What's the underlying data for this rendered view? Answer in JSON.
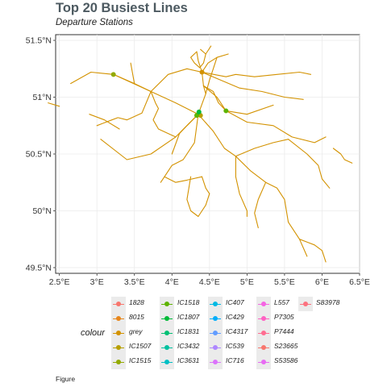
{
  "chart_data": {
    "type": "map",
    "title": "Top 20 Busiest Lines",
    "subtitle": "Departure Stations",
    "caption": "Figure",
    "x_ticks": [
      "2.5°E",
      "3°E",
      "3.5°E",
      "4°E",
      "4.5°E",
      "5°E",
      "5.5°E",
      "6°E",
      "6.5°E"
    ],
    "y_ticks": [
      "49.5°N",
      "50°N",
      "50.5°N",
      "51°N",
      "51.5°N"
    ],
    "xlim": [
      2.45,
      6.5
    ],
    "ylim": [
      49.45,
      51.55
    ],
    "grid": true,
    "legend_title": "colour",
    "legend_placement": "bottom",
    "legend": [
      {
        "label": "1828",
        "color": "#f8766d"
      },
      {
        "label": "8015",
        "color": "#e7861b"
      },
      {
        "label": "grey",
        "color": "#d39200"
      },
      {
        "label": "IC1507",
        "color": "#b79f00"
      },
      {
        "label": "IC1515",
        "color": "#93aa00"
      },
      {
        "label": "IC1518",
        "color": "#5eb300"
      },
      {
        "label": "IC1807",
        "color": "#00ba38"
      },
      {
        "label": "IC1831",
        "color": "#00bf74"
      },
      {
        "label": "IC3432",
        "color": "#00c19f"
      },
      {
        "label": "IC3631",
        "color": "#00bfc4"
      },
      {
        "label": "IC407",
        "color": "#00b9e3"
      },
      {
        "label": "IC429",
        "color": "#00adfa"
      },
      {
        "label": "IC4317",
        "color": "#619cff"
      },
      {
        "label": "IC539",
        "color": "#ae87ff"
      },
      {
        "label": "IC716",
        "color": "#db72fb"
      },
      {
        "label": "L557",
        "color": "#f564e3"
      },
      {
        "label": "P7305",
        "color": "#ff61c3"
      },
      {
        "label": "P7444",
        "color": "#ff6c91"
      },
      {
        "label": "S23665",
        "color": "#f8766d"
      },
      {
        "label": "S53586",
        "color": "#e76bf3"
      },
      {
        "label": "S83978",
        "color": "#fc717f"
      }
    ],
    "route_color": "#d39200",
    "stations": [
      {
        "lon": 3.22,
        "lat": 51.2,
        "color": "#93aa00"
      },
      {
        "lon": 4.72,
        "lat": 50.88,
        "color": "#5eb300"
      },
      {
        "lon": 4.35,
        "lat": 50.85,
        "color": "#93aa00"
      },
      {
        "lon": 4.38,
        "lat": 50.84,
        "color": "#b79f00"
      },
      {
        "lon": 4.33,
        "lat": 50.84,
        "color": "#5eb300"
      },
      {
        "lon": 4.36,
        "lat": 50.87,
        "color": "#00ba38"
      },
      {
        "lon": 4.4,
        "lat": 51.22,
        "color": "#d39200"
      }
    ],
    "lines": [
      [
        [
          2.65,
          51.12
        ],
        [
          2.92,
          51.22
        ],
        [
          3.22,
          51.2
        ],
        [
          3.72,
          51.05
        ],
        [
          4.05,
          50.95
        ],
        [
          4.35,
          50.85
        ]
      ],
      [
        [
          3.22,
          51.2
        ],
        [
          3.5,
          51.12
        ],
        [
          3.72,
          51.05
        ]
      ],
      [
        [
          3.72,
          51.05
        ],
        [
          3.6,
          50.86
        ],
        [
          3.4,
          50.8
        ],
        [
          3.28,
          50.82
        ],
        [
          3.2,
          50.8
        ],
        [
          3.0,
          50.75
        ]
      ],
      [
        [
          3.72,
          51.05
        ],
        [
          3.95,
          51.2
        ],
        [
          4.2,
          51.25
        ],
        [
          4.4,
          51.22
        ]
      ],
      [
        [
          4.35,
          50.85
        ],
        [
          4.45,
          51.03
        ],
        [
          4.42,
          51.1
        ],
        [
          4.4,
          51.22
        ]
      ],
      [
        [
          4.4,
          51.22
        ],
        [
          4.35,
          51.32
        ],
        [
          4.33,
          51.4
        ]
      ],
      [
        [
          4.4,
          51.22
        ],
        [
          4.48,
          51.3
        ],
        [
          4.6,
          51.35
        ],
        [
          4.75,
          51.38
        ]
      ],
      [
        [
          4.4,
          51.22
        ],
        [
          4.65,
          51.15
        ],
        [
          4.9,
          51.08
        ],
        [
          5.2,
          51.05
        ],
        [
          5.5,
          51.0
        ],
        [
          5.75,
          50.98
        ]
      ],
      [
        [
          4.4,
          51.22
        ],
        [
          4.72,
          51.18
        ],
        [
          4.85,
          51.2
        ],
        [
          5.1,
          51.18
        ],
        [
          5.4,
          51.2
        ],
        [
          5.7,
          51.22
        ],
        [
          5.85,
          51.2
        ]
      ],
      [
        [
          4.42,
          51.1
        ],
        [
          4.6,
          51.0
        ],
        [
          4.72,
          50.88
        ],
        [
          5.0,
          50.85
        ],
        [
          5.35,
          50.93
        ]
      ],
      [
        [
          4.72,
          50.88
        ],
        [
          5.0,
          50.78
        ],
        [
          5.35,
          50.75
        ],
        [
          5.6,
          50.65
        ],
        [
          5.9,
          50.6
        ],
        [
          6.05,
          50.65
        ]
      ],
      [
        [
          4.35,
          50.85
        ],
        [
          4.05,
          50.65
        ],
        [
          3.72,
          50.5
        ],
        [
          3.4,
          50.45
        ],
        [
          3.05,
          50.63
        ]
      ],
      [
        [
          4.35,
          50.85
        ],
        [
          4.3,
          50.6
        ],
        [
          4.15,
          50.45
        ],
        [
          4.0,
          50.4
        ],
        [
          3.9,
          50.3
        ],
        [
          3.85,
          50.25
        ]
      ],
      [
        [
          4.35,
          50.85
        ],
        [
          4.55,
          50.7
        ],
        [
          4.7,
          50.55
        ],
        [
          4.85,
          50.48
        ],
        [
          5.05,
          50.35
        ],
        [
          5.25,
          50.25
        ],
        [
          5.4,
          50.2
        ],
        [
          5.5,
          50.1
        ],
        [
          5.55,
          49.9
        ],
        [
          5.7,
          49.75
        ],
        [
          5.8,
          49.6
        ]
      ],
      [
        [
          4.85,
          50.48
        ],
        [
          5.1,
          50.55
        ],
        [
          5.35,
          50.6
        ],
        [
          5.55,
          50.63
        ]
      ],
      [
        [
          4.85,
          50.48
        ],
        [
          4.85,
          50.3
        ],
        [
          4.9,
          50.15
        ],
        [
          5.0,
          50.0
        ],
        [
          5.0,
          49.95
        ]
      ],
      [
        [
          5.55,
          50.63
        ],
        [
          5.8,
          50.5
        ],
        [
          5.95,
          50.4
        ],
        [
          6.0,
          50.28
        ],
        [
          6.1,
          50.2
        ]
      ],
      [
        [
          5.7,
          49.75
        ],
        [
          5.9,
          49.7
        ],
        [
          6.0,
          49.65
        ],
        [
          6.05,
          49.55
        ]
      ],
      [
        [
          6.15,
          50.55
        ],
        [
          6.25,
          50.5
        ],
        [
          6.3,
          50.45
        ],
        [
          6.4,
          50.42
        ]
      ],
      [
        [
          3.9,
          50.3
        ],
        [
          4.05,
          50.25
        ],
        [
          4.2,
          50.27
        ],
        [
          4.4,
          50.3
        ]
      ],
      [
        [
          2.9,
          50.85
        ],
        [
          3.1,
          50.8
        ],
        [
          3.3,
          50.72
        ]
      ],
      [
        [
          4.25,
          50.3
        ],
        [
          4.2,
          50.1
        ],
        [
          4.25,
          50.0
        ],
        [
          4.35,
          49.95
        ],
        [
          4.45,
          50.05
        ],
        [
          4.5,
          50.15
        ]
      ],
      [
        [
          4.33,
          51.4
        ],
        [
          4.25,
          51.35
        ],
        [
          4.3,
          51.3
        ],
        [
          4.37,
          51.26
        ],
        [
          4.42,
          51.3
        ],
        [
          4.45,
          51.38
        ],
        [
          4.38,
          51.42
        ]
      ],
      [
        [
          3.72,
          51.05
        ],
        [
          3.78,
          50.95
        ],
        [
          3.82,
          50.9
        ],
        [
          3.75,
          50.8
        ],
        [
          3.82,
          50.72
        ],
        [
          3.95,
          50.68
        ],
        [
          4.05,
          50.65
        ]
      ],
      [
        [
          4.35,
          50.85
        ],
        [
          4.2,
          50.75
        ],
        [
          4.1,
          50.68
        ],
        [
          4.0,
          50.5
        ]
      ],
      [
        [
          4.72,
          50.88
        ],
        [
          4.62,
          50.95
        ],
        [
          4.55,
          51.05
        ],
        [
          4.42,
          51.1
        ]
      ],
      [
        [
          4.45,
          51.38
        ],
        [
          4.52,
          51.45
        ]
      ],
      [
        [
          4.6,
          51.35
        ],
        [
          4.55,
          51.25
        ],
        [
          4.5,
          51.15
        ],
        [
          4.45,
          51.03
        ]
      ],
      [
        [
          2.35,
          50.95
        ],
        [
          2.5,
          50.92
        ]
      ],
      [
        [
          3.5,
          51.12
        ],
        [
          3.45,
          51.3
        ]
      ],
      [
        [
          5.25,
          50.25
        ],
        [
          5.15,
          50.1
        ],
        [
          5.1,
          49.98
        ],
        [
          5.15,
          49.85
        ]
      ],
      [
        [
          4.4,
          50.3
        ],
        [
          4.45,
          50.2
        ],
        [
          4.5,
          50.15
        ]
      ]
    ]
  }
}
